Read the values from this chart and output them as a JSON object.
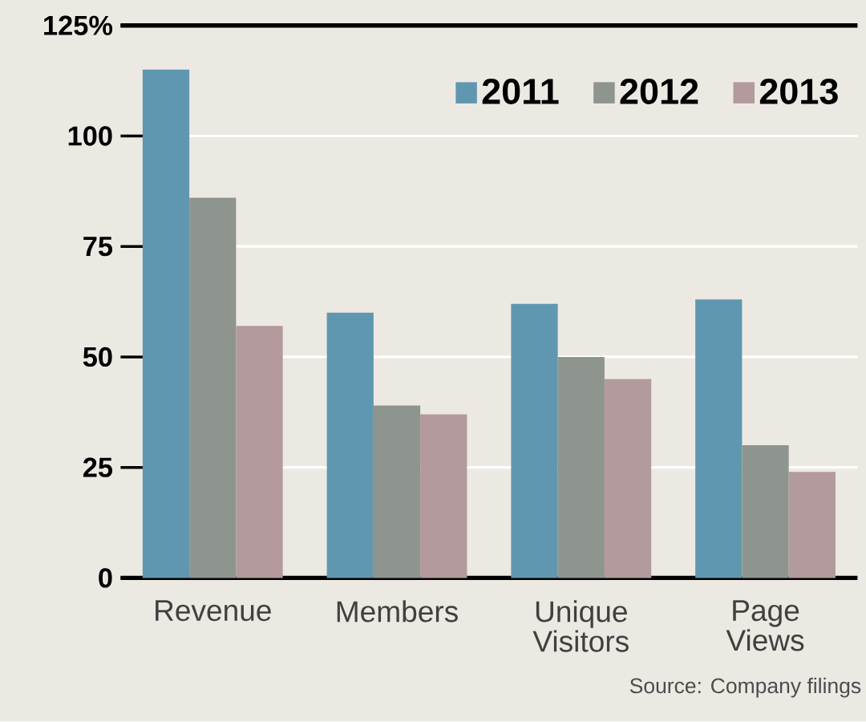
{
  "chart_data": {
    "type": "bar",
    "categories": [
      "Revenue",
      "Members",
      "Unique Visitors",
      "Page Views"
    ],
    "series": [
      {
        "name": "2011",
        "color": "#5f97b0",
        "values": [
          115,
          60,
          62,
          63
        ]
      },
      {
        "name": "2012",
        "color": "#8e948e",
        "values": [
          86,
          39,
          50,
          30
        ]
      },
      {
        "name": "2013",
        "color": "#b39a9c",
        "values": [
          57,
          37,
          45,
          24
        ]
      }
    ],
    "ylim": [
      0,
      125
    ],
    "yticks": [
      0,
      25,
      50,
      75,
      100,
      {
        "value": 125,
        "label": "125%"
      }
    ],
    "grid": "y",
    "legend": "top right",
    "annotations": [
      "Source: Company filings"
    ]
  }
}
